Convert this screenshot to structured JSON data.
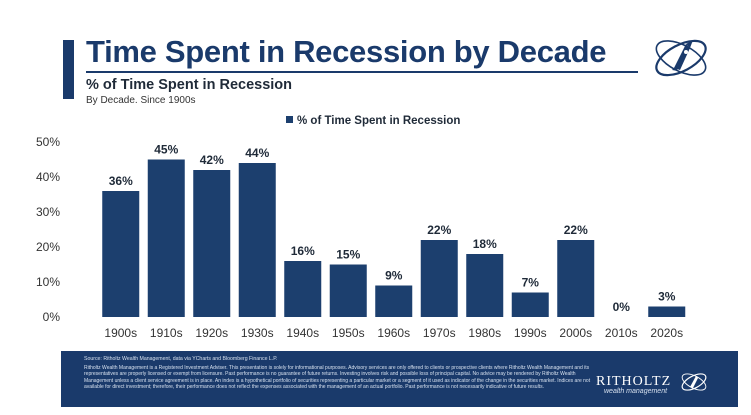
{
  "header": {
    "title": "Time Spent in Recession by Decade",
    "subtitle": "% of Time Spent in Recession",
    "note": "By Decade. Since 1900s"
  },
  "colors": {
    "brand": "#1a3a6b",
    "bar": "#1c3f6e",
    "axis_text": "#333333"
  },
  "chart_data": {
    "type": "bar",
    "categories": [
      "1900s",
      "1910s",
      "1920s",
      "1930s",
      "1940s",
      "1950s",
      "1960s",
      "1970s",
      "1980s",
      "1990s",
      "2000s",
      "2010s",
      "2020s"
    ],
    "series": [
      {
        "name": "% of Time Spent in Recession",
        "values": [
          36,
          45,
          42,
          44,
          16,
          15,
          9,
          22,
          18,
          7,
          22,
          0,
          3
        ]
      }
    ],
    "data_labels": [
      "36%",
      "45%",
      "42%",
      "44%",
      "16%",
      "15%",
      "9%",
      "22%",
      "18%",
      "7%",
      "22%",
      "0%",
      "3%"
    ],
    "ylim": [
      0,
      50
    ],
    "y_ticks": [
      0,
      10,
      20,
      30,
      40,
      50
    ],
    "y_tick_labels": [
      "0%",
      "10%",
      "20%",
      "30%",
      "40%",
      "50%"
    ],
    "xlabel": "",
    "ylabel": "",
    "legend": {
      "label": "% of Time Spent in Recession",
      "position": "top-center"
    },
    "grid": false
  },
  "footer": {
    "source": "Source: Ritholtz Wealth Management, data via YCharts and Bloomberg Finance L.P.",
    "disclaimer": "Ritholtz Wealth Management is a Registered Investment Adviser. This presentation is solely for informational purposes. Advisory services are only offered to clients or prospective clients where Ritholtz Wealth Management and its representatives are properly licensed or exempt from licensure. Past performance is no guarantee of future returns. Investing involves risk and possible loss of principal capital. No advice may be rendered by Ritholtz Wealth Management unless a client service agreement is in place. An index is a hypothetical portfolio of securities representing a particular market or a segment of it used as indicator of the change in the securities market. Indices are not available for direct investment; therefore, their performance does not reflect the expenses associated with the management of an actual portfolio. Past performance is not necessarily indicative of future results.",
    "brand": "RITHOLTZ",
    "brand_sub": "wealth management"
  }
}
